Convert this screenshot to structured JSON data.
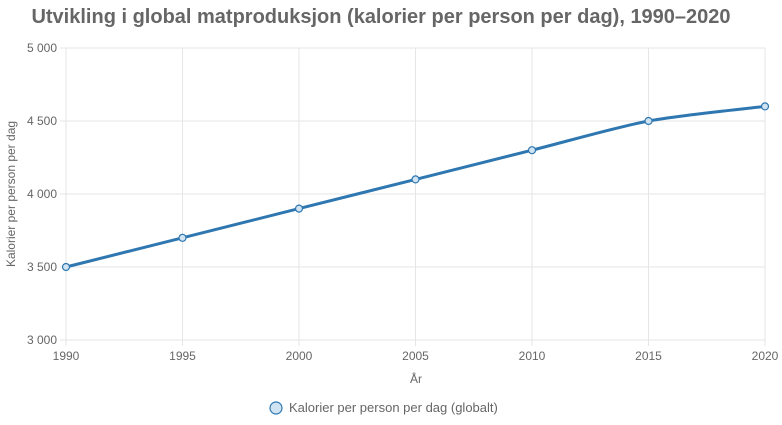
{
  "chart_data": {
    "type": "line",
    "title": "Utvikling i global matproduksjon (kalorier per person per dag), 1990–2020",
    "xlabel": "År",
    "ylabel": "Kalorier per person per dag",
    "x": [
      1990,
      1995,
      2000,
      2005,
      2010,
      2015,
      2020
    ],
    "x_tick_labels": [
      "1990",
      "1995",
      "2000",
      "2005",
      "2010",
      "2015",
      "2020"
    ],
    "ylim": [
      3000,
      5000
    ],
    "y_ticks": [
      3000,
      3500,
      4000,
      4500,
      5000
    ],
    "y_tick_labels": [
      "3 000",
      "3 500",
      "4 000",
      "4 500",
      "5 000"
    ],
    "series": [
      {
        "name": "Kalorier per person per dag (globalt)",
        "values": [
          3500,
          3700,
          3900,
          4100,
          4300,
          4500,
          4600
        ],
        "color": "#2f77b0",
        "point_fill": "#cfe3f2"
      }
    ],
    "grid": true,
    "legend_position": "bottom"
  }
}
